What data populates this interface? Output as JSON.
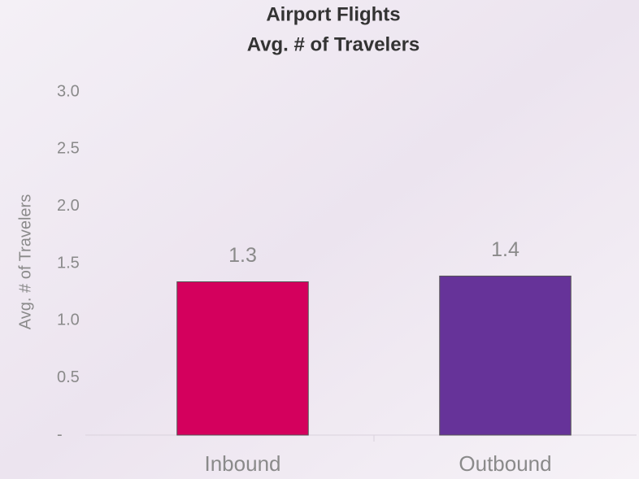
{
  "chart_data": {
    "type": "bar",
    "title": "Airport Flights",
    "subtitle": "Avg. # of Travelers",
    "y_label": "Avg. # of Travelers",
    "categories": [
      "Inbound",
      "Outbound"
    ],
    "values": [
      1.34,
      1.39
    ],
    "value_labels": [
      "1.3",
      "1.4"
    ],
    "colors": [
      "#d4005d",
      "#663399"
    ],
    "ylim": [
      0,
      3
    ],
    "yticks": [
      {
        "value": 0,
        "label": "-"
      },
      0.5,
      {
        "value": 1,
        "label": "1.0"
      },
      1.5,
      {
        "value": 2,
        "label": "2.0"
      },
      2.5,
      {
        "value": 3,
        "label": "3.0"
      }
    ],
    "grid": false
  }
}
